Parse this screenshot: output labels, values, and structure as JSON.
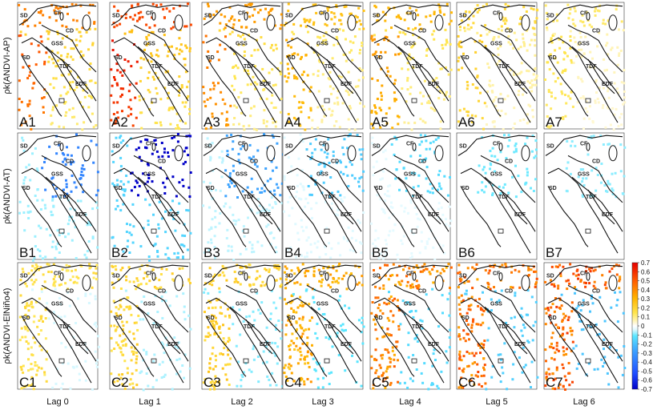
{
  "chart_data": {
    "type": "heatmap",
    "title": "",
    "rows": [
      {
        "id": "A",
        "label": "ρk(ANDVI-AP)"
      },
      {
        "id": "B",
        "label": "ρk(ANDVI-AT)"
      },
      {
        "id": "C",
        "label": "ρk(ANDVI-ElNiño4)"
      }
    ],
    "columns": [
      "Lag 0",
      "Lag 1",
      "Lag 2",
      "Lag 3",
      "Lag 4",
      "Lag 5",
      "Lag 6"
    ],
    "panel_labels": [
      [
        "A1",
        "A2",
        "A3",
        "A4",
        "A5",
        "A6",
        "A7"
      ],
      [
        "B1",
        "B2",
        "B3",
        "B4",
        "B5",
        "B6",
        "B7"
      ],
      [
        "C1",
        "C2",
        "C3",
        "C4",
        "C5",
        "C6",
        "C7"
      ]
    ],
    "region_labels": [
      "SD",
      "CF",
      "CD",
      "GSS",
      "TDF",
      "EDF"
    ],
    "colorbar": {
      "min": -0.7,
      "max": 0.7,
      "ticks": [
        "0.7",
        "0.6",
        "0.5",
        "0.4",
        "0.3",
        "0.2",
        "0.1",
        "0",
        "-0.1",
        "-0.2",
        "-0.3",
        "-0.4",
        "-0.5",
        "-0.6",
        "-0.7"
      ]
    },
    "approx_mean_correlation": {
      "A": [
        0.35,
        0.45,
        0.3,
        0.22,
        0.25,
        0.15,
        0.1
      ],
      "B": [
        -0.2,
        -0.4,
        -0.15,
        -0.1,
        -0.08,
        -0.06,
        -0.05
      ],
      "C": [
        0.15,
        0.18,
        0.2,
        0.3,
        0.38,
        0.42,
        0.45
      ]
    }
  }
}
